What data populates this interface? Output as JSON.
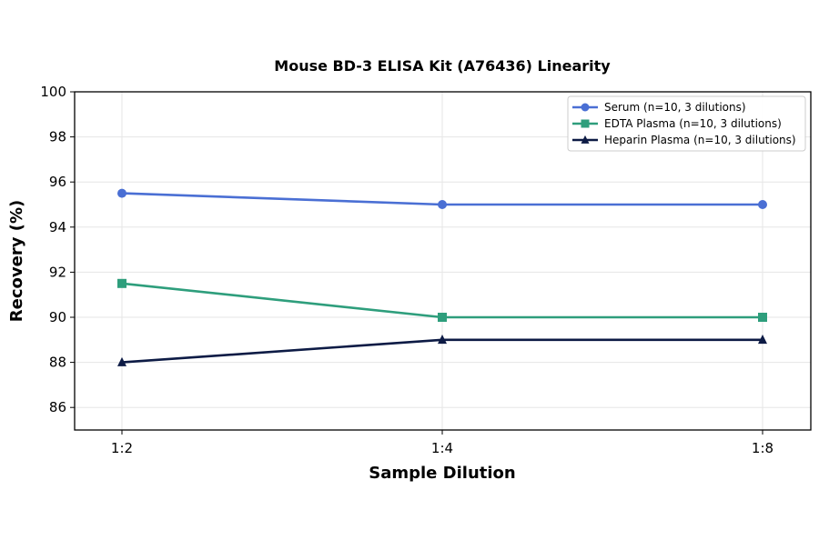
{
  "chart_data": {
    "type": "line",
    "title": "Mouse BD-3 ELISA Kit (A76436) Linearity",
    "xlabel": "Sample Dilution",
    "ylabel": "Recovery (%)",
    "categories": [
      "1:2",
      "1:4",
      "1:8"
    ],
    "ylim": [
      85,
      100
    ],
    "yticks": [
      86,
      88,
      90,
      92,
      94,
      96,
      98,
      100
    ],
    "grid": true,
    "legend_position": "top-right",
    "series": [
      {
        "name": "Serum (n=10, 3 dilutions)",
        "values": [
          95.5,
          95,
          95
        ],
        "color": "#4a6fd4",
        "marker": "circle"
      },
      {
        "name": "EDTA Plasma (n=10, 3 dilutions)",
        "values": [
          91.5,
          90,
          90
        ],
        "color": "#2e9e7c",
        "marker": "square"
      },
      {
        "name": "Heparin Plasma (n=10, 3 dilutions)",
        "values": [
          88,
          89,
          89
        ],
        "color": "#0d1b45",
        "marker": "triangle"
      }
    ]
  }
}
